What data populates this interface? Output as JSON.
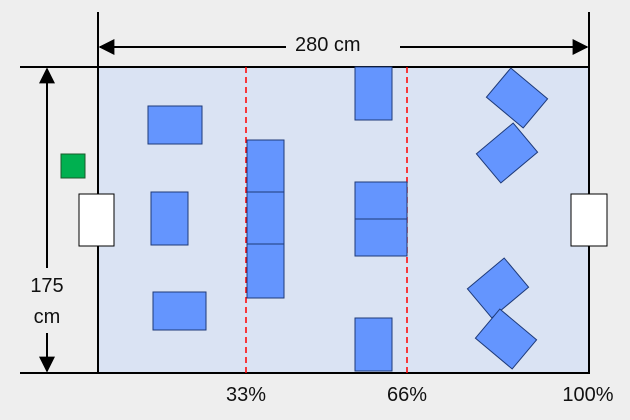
{
  "dimensions": {
    "width_label": "280 cm",
    "height_label_line1": "175",
    "height_label_line2": "cm"
  },
  "colors": {
    "background": "#eeeeee",
    "field": "#dae3f3",
    "block_fill": "#6495fe",
    "block_stroke": "#1e3a78",
    "divider": "#ff0000",
    "green_marker": "#00b050",
    "goal_fill": "#ffffff"
  },
  "dividers": [
    {
      "label": "33%"
    },
    {
      "label": "66%"
    },
    {
      "label": "100%"
    }
  ]
}
